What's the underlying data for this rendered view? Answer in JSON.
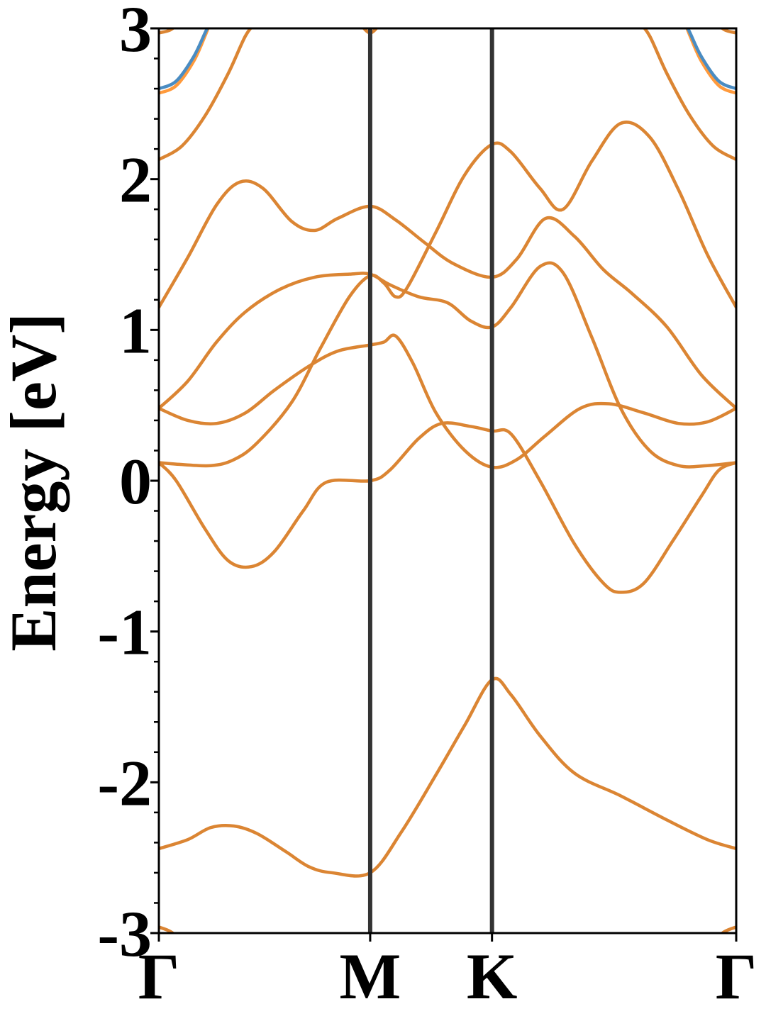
{
  "chart_data": {
    "type": "line",
    "ylabel": "Energy [eV]",
    "ylim": [
      -3,
      3
    ],
    "xlim": [
      0,
      1
    ],
    "yticks": [
      {
        "value": 3,
        "label": "3"
      },
      {
        "value": 2,
        "label": "2"
      },
      {
        "value": 1,
        "label": "1"
      },
      {
        "value": 0,
        "label": "0"
      },
      {
        "value": -1,
        "label": "-1"
      },
      {
        "value": -2,
        "label": "-2"
      },
      {
        "value": -3,
        "label": "-3"
      }
    ],
    "kpoints": [
      {
        "x": 0.0,
        "label": "Γ"
      },
      {
        "x": 0.366,
        "label": "M"
      },
      {
        "x": 0.577,
        "label": "K"
      },
      {
        "x": 1.0,
        "label": "Γ"
      }
    ],
    "grid": false,
    "colors": {
      "band": "#DB8533",
      "band_upper": "#FF9A3C",
      "band_alt": "#4A8CC2",
      "divider": "#333333"
    },
    "series": [
      {
        "values": [
          [
            0,
            -2.44
          ],
          [
            0.05,
            -2.38
          ],
          [
            0.09,
            -2.3
          ],
          [
            0.13,
            -2.29
          ],
          [
            0.17,
            -2.34
          ],
          [
            0.22,
            -2.46
          ],
          [
            0.26,
            -2.56
          ],
          [
            0.3,
            -2.6
          ],
          [
            0.366,
            -2.6
          ],
          [
            0.42,
            -2.33
          ],
          [
            0.48,
            -1.95
          ],
          [
            0.53,
            -1.62
          ],
          [
            0.577,
            -1.32
          ],
          [
            0.61,
            -1.42
          ],
          [
            0.66,
            -1.69
          ],
          [
            0.72,
            -1.94
          ],
          [
            0.8,
            -2.09
          ],
          [
            0.88,
            -2.25
          ],
          [
            0.95,
            -2.38
          ],
          [
            1.0,
            -2.44
          ]
        ]
      },
      {
        "values": [
          [
            0,
            0.12
          ],
          [
            0.03,
            0.0
          ],
          [
            0.08,
            -0.32
          ],
          [
            0.12,
            -0.53
          ],
          [
            0.16,
            -0.57
          ],
          [
            0.2,
            -0.47
          ],
          [
            0.25,
            -0.2
          ],
          [
            0.29,
            -0.01
          ],
          [
            0.366,
            0.0
          ],
          [
            0.4,
            0.07
          ],
          [
            0.45,
            0.28
          ],
          [
            0.49,
            0.38
          ],
          [
            0.54,
            0.36
          ],
          [
            0.577,
            0.33
          ],
          [
            0.61,
            0.31
          ],
          [
            0.66,
            0.0
          ],
          [
            0.72,
            -0.42
          ],
          [
            0.77,
            -0.68
          ],
          [
            0.8,
            -0.74
          ],
          [
            0.84,
            -0.68
          ],
          [
            0.89,
            -0.4
          ],
          [
            0.94,
            -0.1
          ],
          [
            0.97,
            0.07
          ],
          [
            1.0,
            0.12
          ]
        ]
      },
      {
        "values": [
          [
            0,
            0.12
          ],
          [
            0.03,
            0.11
          ],
          [
            0.09,
            0.1
          ],
          [
            0.13,
            0.14
          ],
          [
            0.17,
            0.25
          ],
          [
            0.23,
            0.52
          ],
          [
            0.28,
            0.88
          ],
          [
            0.33,
            1.22
          ],
          [
            0.366,
            1.36
          ],
          [
            0.39,
            1.31
          ],
          [
            0.41,
            1.22
          ],
          [
            0.43,
            1.28
          ],
          [
            0.48,
            1.65
          ],
          [
            0.53,
            2.03
          ],
          [
            0.577,
            2.23
          ],
          [
            0.61,
            2.18
          ],
          [
            0.66,
            1.94
          ],
          [
            0.7,
            1.8
          ],
          [
            0.75,
            2.12
          ],
          [
            0.8,
            2.37
          ],
          [
            0.85,
            2.28
          ],
          [
            0.9,
            1.93
          ],
          [
            0.95,
            1.5
          ],
          [
            1.0,
            1.15
          ]
        ]
      },
      {
        "values": [
          [
            0,
            0.48
          ],
          [
            0.05,
            0.66
          ],
          [
            0.1,
            0.92
          ],
          [
            0.15,
            1.12
          ],
          [
            0.21,
            1.27
          ],
          [
            0.27,
            1.35
          ],
          [
            0.33,
            1.37
          ],
          [
            0.366,
            1.37
          ],
          [
            0.4,
            1.3
          ],
          [
            0.45,
            1.22
          ],
          [
            0.5,
            1.18
          ],
          [
            0.54,
            1.06
          ],
          [
            0.577,
            1.02
          ],
          [
            0.61,
            1.15
          ],
          [
            0.66,
            1.42
          ],
          [
            0.7,
            1.38
          ],
          [
            0.75,
            0.95
          ],
          [
            0.8,
            0.48
          ],
          [
            0.85,
            0.2
          ],
          [
            0.9,
            0.1
          ],
          [
            0.95,
            0.1
          ],
          [
            1.0,
            0.12
          ]
        ]
      },
      {
        "values": [
          [
            0,
            0.48
          ],
          [
            0.05,
            0.4
          ],
          [
            0.1,
            0.38
          ],
          [
            0.15,
            0.45
          ],
          [
            0.2,
            0.6
          ],
          [
            0.26,
            0.76
          ],
          [
            0.31,
            0.86
          ],
          [
            0.366,
            0.9
          ],
          [
            0.39,
            0.92
          ],
          [
            0.41,
            0.96
          ],
          [
            0.44,
            0.78
          ],
          [
            0.48,
            0.45
          ],
          [
            0.53,
            0.2
          ],
          [
            0.577,
            0.09
          ],
          [
            0.62,
            0.14
          ],
          [
            0.67,
            0.3
          ],
          [
            0.73,
            0.48
          ],
          [
            0.78,
            0.51
          ],
          [
            0.84,
            0.45
          ],
          [
            0.9,
            0.38
          ],
          [
            0.95,
            0.39
          ],
          [
            1.0,
            0.48
          ]
        ]
      },
      {
        "values": [
          [
            0,
            1.15
          ],
          [
            0.05,
            1.48
          ],
          [
            0.1,
            1.83
          ],
          [
            0.14,
            1.98
          ],
          [
            0.18,
            1.94
          ],
          [
            0.23,
            1.72
          ],
          [
            0.27,
            1.66
          ],
          [
            0.31,
            1.74
          ],
          [
            0.366,
            1.82
          ],
          [
            0.41,
            1.73
          ],
          [
            0.46,
            1.58
          ],
          [
            0.51,
            1.44
          ],
          [
            0.577,
            1.35
          ],
          [
            0.62,
            1.47
          ],
          [
            0.67,
            1.74
          ],
          [
            0.72,
            1.62
          ],
          [
            0.77,
            1.4
          ],
          [
            0.82,
            1.24
          ],
          [
            0.88,
            1.02
          ],
          [
            0.94,
            0.7
          ],
          [
            1.0,
            0.48
          ]
        ]
      },
      {
        "values": [
          [
            0,
            2.13
          ],
          [
            0.04,
            2.22
          ],
          [
            0.08,
            2.42
          ],
          [
            0.12,
            2.7
          ],
          [
            0.15,
            2.95
          ],
          [
            0.17,
            3.05
          ]
        ]
      },
      {
        "values": [
          [
            0.83,
            3.05
          ],
          [
            0.85,
            2.95
          ],
          [
            0.88,
            2.7
          ],
          [
            0.92,
            2.42
          ],
          [
            0.96,
            2.22
          ],
          [
            1.0,
            2.13
          ]
        ]
      },
      {
        "values": [
          [
            0,
            2.57
          ],
          [
            0.03,
            2.62
          ],
          [
            0.06,
            2.78
          ],
          [
            0.08,
            2.95
          ],
          [
            0.09,
            3.05
          ]
        ]
      },
      {
        "values": [
          [
            0.91,
            3.05
          ],
          [
            0.92,
            2.95
          ],
          [
            0.94,
            2.78
          ],
          [
            0.97,
            2.62
          ],
          [
            1.0,
            2.57
          ]
        ]
      },
      {
        "values": [
          [
            0,
            2.6
          ],
          [
            0.03,
            2.65
          ],
          [
            0.06,
            2.81
          ],
          [
            0.08,
            2.97
          ],
          [
            0.09,
            3.05
          ]
        ]
      },
      {
        "values": [
          [
            0.91,
            3.05
          ],
          [
            0.92,
            2.97
          ],
          [
            0.94,
            2.81
          ],
          [
            0.97,
            2.65
          ],
          [
            1.0,
            2.6
          ]
        ]
      },
      {
        "values": [
          [
            0,
            2.97
          ],
          [
            0.02,
            2.99
          ],
          [
            0.04,
            3.05
          ]
        ]
      },
      {
        "values": [
          [
            0.96,
            3.05
          ],
          [
            0.98,
            2.99
          ],
          [
            1.0,
            2.97
          ]
        ]
      },
      {
        "values": [
          [
            0.345,
            3.05
          ],
          [
            0.366,
            2.97
          ],
          [
            0.387,
            3.05
          ]
        ]
      },
      {
        "values": [
          [
            0,
            -2.96
          ],
          [
            0.02,
            -2.99
          ],
          [
            0.04,
            -3.05
          ]
        ]
      },
      {
        "values": [
          [
            0.96,
            -3.05
          ],
          [
            0.98,
            -2.99
          ],
          [
            1.0,
            -2.96
          ]
        ]
      }
    ]
  }
}
